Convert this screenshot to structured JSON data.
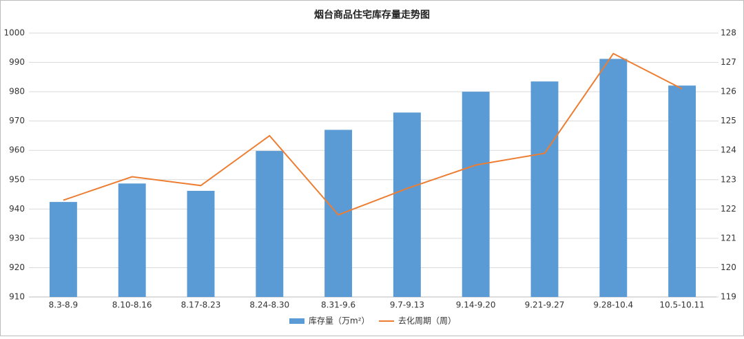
{
  "chart_data": {
    "type": "bar",
    "title": "烟台商品住宅库存量走势图",
    "categories": [
      "8.3-8.9",
      "8.10-8.16",
      "8.17-8.23",
      "8.24-8.30",
      "8.31-9.6",
      "9.7-9.13",
      "9.14-9.20",
      "9.21-9.27",
      "9.28-10.4",
      "10.5-10.11"
    ],
    "series": [
      {
        "name": "库存量（万m²）",
        "type": "bar",
        "color": "#5b9bd5",
        "values": [
          942.4,
          948.7,
          946.2,
          959.8,
          967.0,
          972.9,
          980.0,
          983.5,
          991.2,
          982.1
        ]
      },
      {
        "name": "去化周期（周）",
        "type": "line",
        "axis": "y2",
        "color": "#ed7d31",
        "values": [
          122.3,
          123.1,
          122.8,
          124.5,
          121.8,
          122.7,
          123.5,
          123.9,
          127.3,
          126.1
        ]
      }
    ],
    "ylim": [
      910,
      1000
    ],
    "yticks": [
      910,
      920,
      930,
      940,
      950,
      960,
      970,
      980,
      990,
      1000
    ],
    "y2lim": [
      119,
      128
    ],
    "y2ticks": [
      119,
      120,
      121,
      122,
      123,
      124,
      125,
      126,
      127,
      128
    ],
    "grid": true,
    "legend": "bottom"
  }
}
